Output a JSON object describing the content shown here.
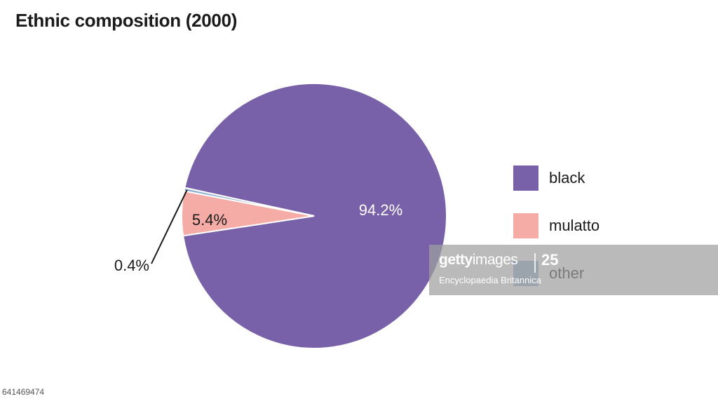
{
  "chart_data": {
    "type": "pie",
    "title": "Ethnic composition (2000)",
    "slices": [
      {
        "name": "black",
        "value": 94.2,
        "label": "94.2%",
        "color": "#7861a8"
      },
      {
        "name": "mulatto",
        "value": 5.4,
        "label": "5.4%",
        "color": "#f5aca6"
      },
      {
        "name": "other",
        "value": 0.4,
        "label": "0.4%",
        "color": "#8fb0cf"
      }
    ],
    "legend": {
      "placement": "right",
      "items": [
        "black",
        "mulatto",
        "other"
      ]
    }
  },
  "watermark": {
    "brand_bold": "getty",
    "brand_light": "images",
    "badge": "25",
    "credit": "Encyclopaedia Britannica"
  },
  "image_id": "641469474"
}
